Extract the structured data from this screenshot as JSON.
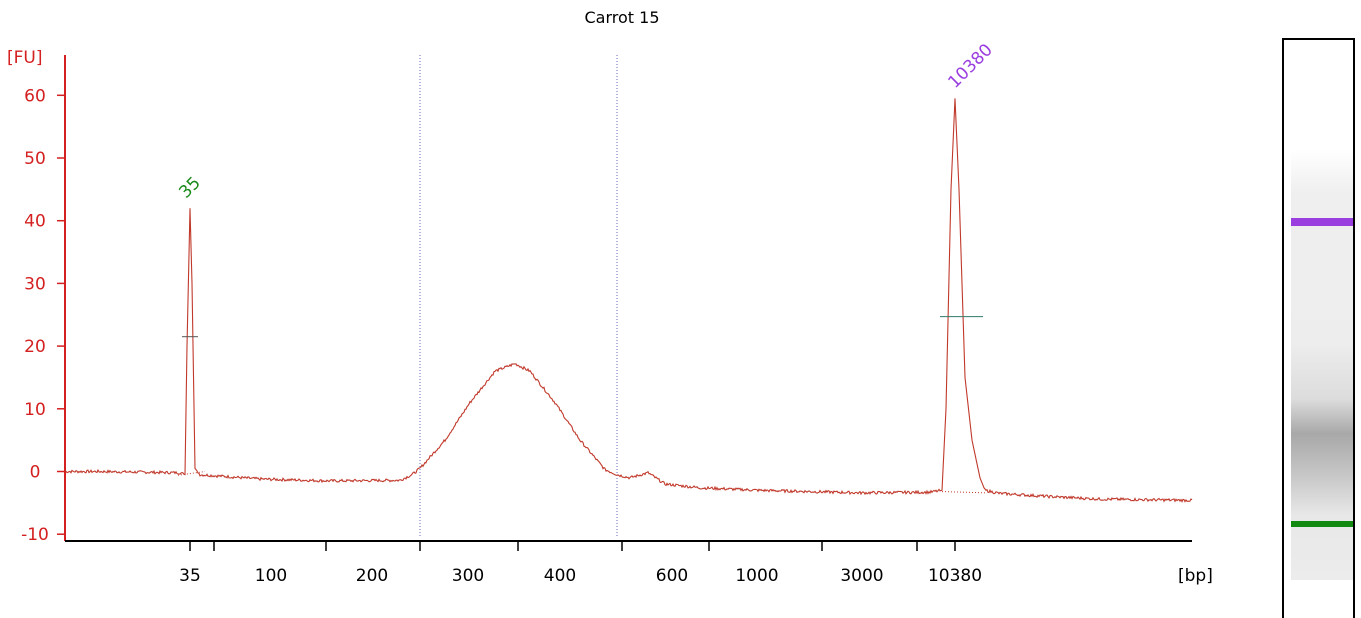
{
  "chart_data": {
    "type": "line",
    "title": "Carrot 15",
    "ylabel": "[FU]",
    "xlabel": "[bp]",
    "ylim": [
      -11,
      66
    ],
    "yticks": [
      -10,
      0,
      10,
      20,
      30,
      40,
      50,
      60
    ],
    "ytick_labels": [
      "-10",
      "0",
      "10",
      "20",
      "30",
      "40",
      "50",
      "60"
    ],
    "xtick_labels": [
      "35",
      "100",
      "200",
      "300",
      "400",
      "600",
      "1000",
      "3000",
      "10380"
    ],
    "region_markers_bp": [
      250,
      500
    ],
    "peak_labels": [
      {
        "label": "35",
        "bp": 35,
        "height": 42,
        "color": "#1a8a1a"
      },
      {
        "label": "10380",
        "bp": 10380,
        "height": 60,
        "color": "#9b3ee0"
      }
    ],
    "series": [
      {
        "color": "#c0392b",
        "x": [
          "start",
          "35",
          "100",
          "200",
          "250",
          "300",
          "350",
          "400",
          "500",
          "550",
          "600",
          "1000",
          "3000",
          "10380",
          "end"
        ],
        "y": [
          0,
          42,
          -1,
          -1.5,
          -0.5,
          10,
          17,
          10,
          -0.5,
          0,
          -2.5,
          -3,
          -3.5,
          60,
          -4.5
        ]
      }
    ],
    "grid": false,
    "legend": "none"
  },
  "gel": {
    "bands": [
      {
        "name": "upper-marker",
        "color": "#9b3ee0"
      },
      {
        "name": "sample-smear",
        "color": "#a0a0a0"
      },
      {
        "name": "lower-marker",
        "color": "#128a12"
      }
    ]
  }
}
